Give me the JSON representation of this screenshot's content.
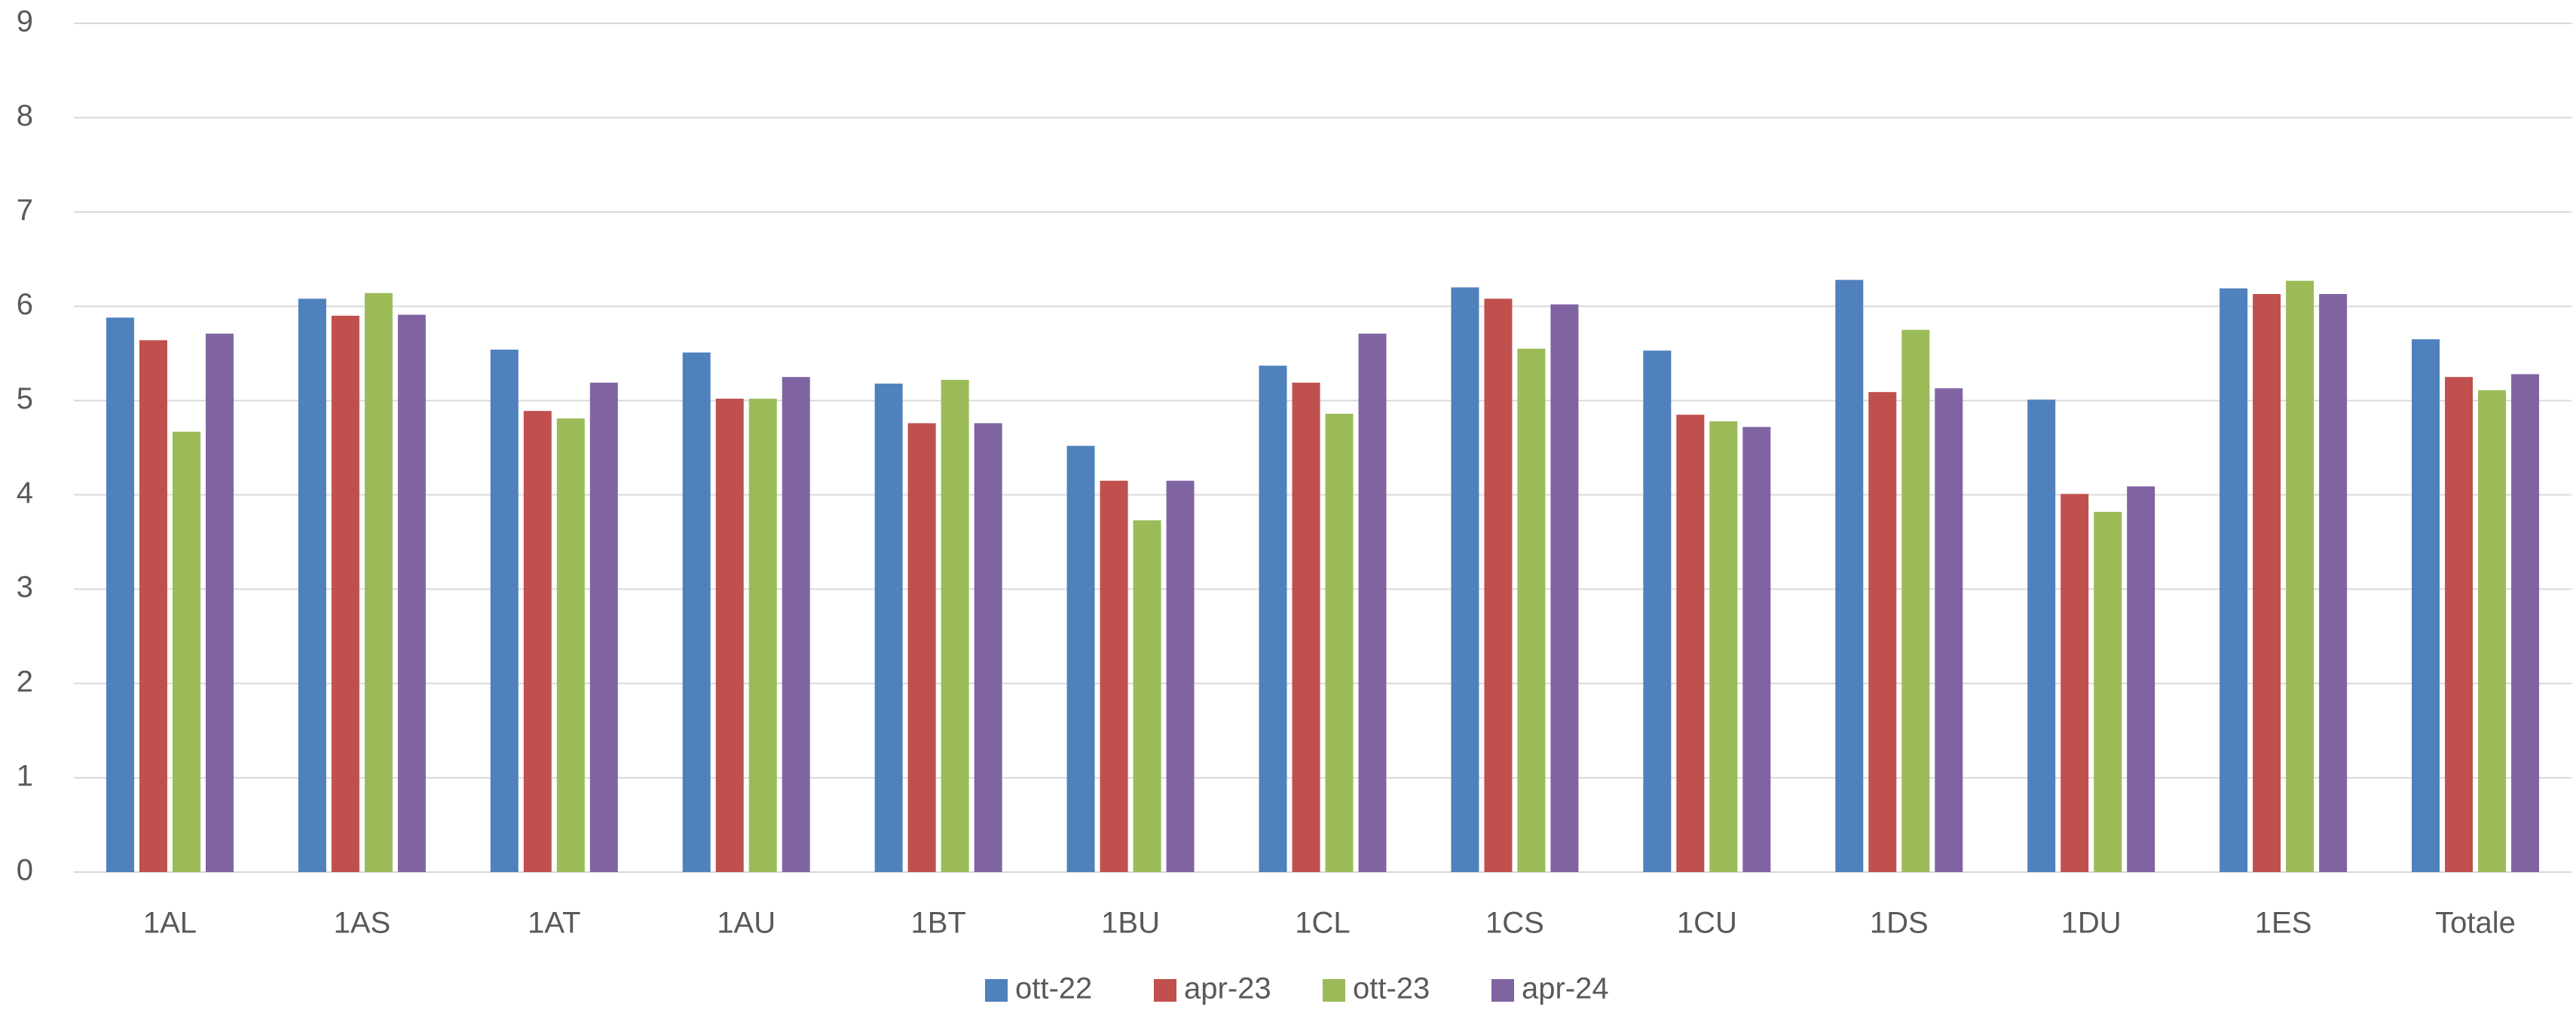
{
  "chart_data": {
    "type": "bar",
    "categories": [
      "1AL",
      "1AS",
      "1AT",
      "1AU",
      "1BT",
      "1BU",
      "1CL",
      "1CS",
      "1CU",
      "1DS",
      "1DU",
      "1ES",
      "Totale"
    ],
    "series": [
      {
        "name": "ott-22",
        "color": "#4f81bd",
        "values": [
          5.88,
          6.08,
          5.54,
          5.51,
          5.18,
          4.52,
          5.37,
          6.2,
          5.53,
          6.28,
          5.01,
          6.19,
          5.65
        ]
      },
      {
        "name": "apr-23",
        "color": "#c0504d",
        "values": [
          5.64,
          5.9,
          4.89,
          5.02,
          4.76,
          4.15,
          5.19,
          6.08,
          4.85,
          5.09,
          4.01,
          6.13,
          5.25
        ]
      },
      {
        "name": "ott-23",
        "color": "#9bbb59",
        "values": [
          4.67,
          6.14,
          4.81,
          5.02,
          5.22,
          3.73,
          4.86,
          5.55,
          4.78,
          5.75,
          3.82,
          6.27,
          5.11
        ]
      },
      {
        "name": "apr-24",
        "color": "#8064a2",
        "values": [
          5.71,
          5.91,
          5.19,
          5.25,
          4.76,
          4.15,
          5.71,
          6.02,
          4.72,
          5.13,
          4.09,
          6.13,
          5.28
        ]
      }
    ],
    "ylim": [
      0,
      9
    ],
    "yticks": [
      0,
      1,
      2,
      3,
      4,
      5,
      6,
      7,
      8,
      9
    ],
    "grid": true,
    "legend": "bottom"
  }
}
